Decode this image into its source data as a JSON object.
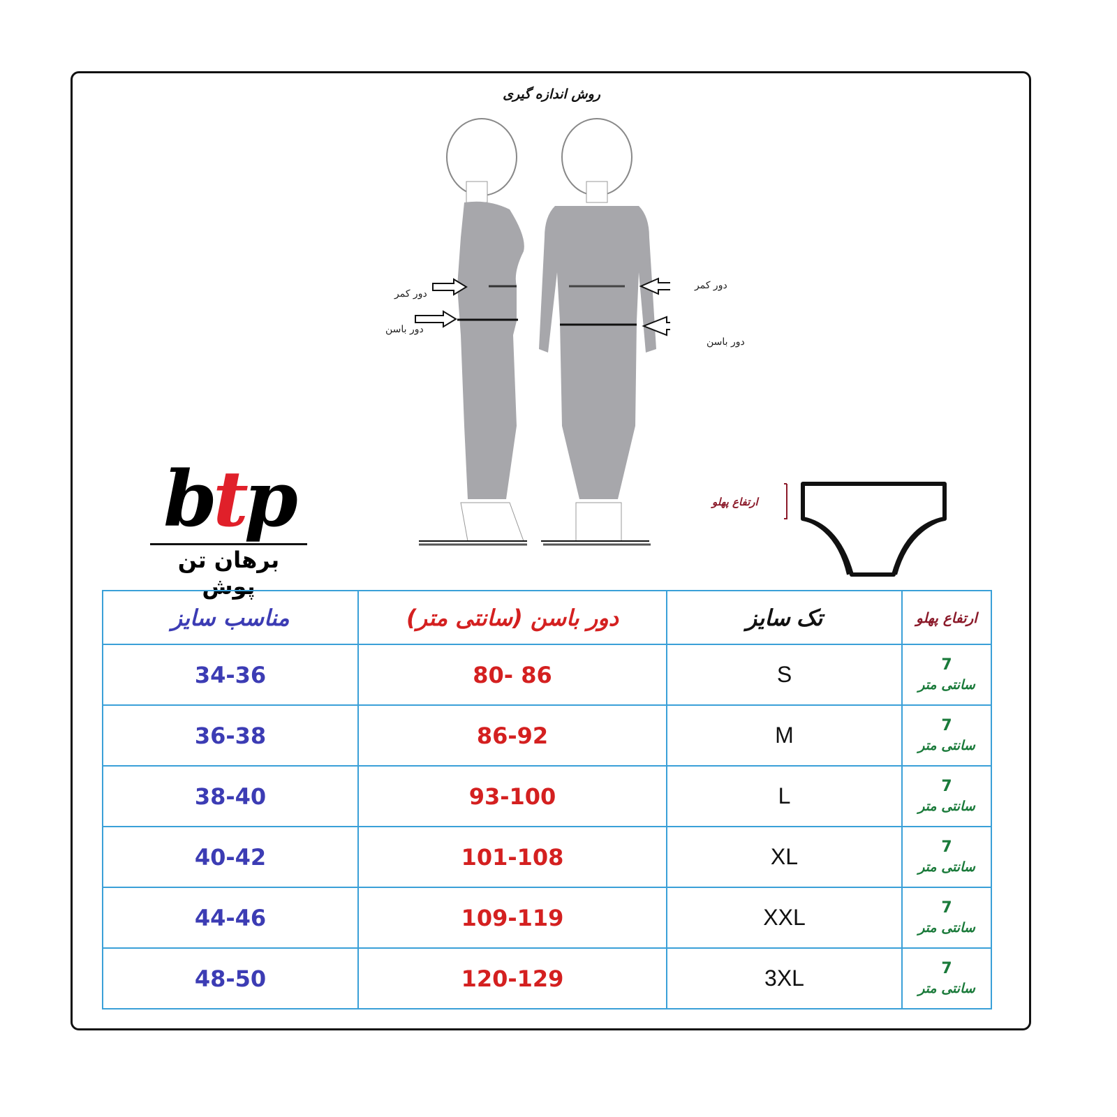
{
  "title": "روش اندازه گیری",
  "figure_labels": {
    "waist": "دور کمر",
    "hip": "دور باسن"
  },
  "logo": {
    "mark": "btp",
    "name": "برهان تن پوش"
  },
  "panty_label": "ارتفاع پهلو",
  "colors": {
    "table_border": "#3aa0d8",
    "fit_size": "#3c3cb4",
    "hip": "#d42020",
    "side_height": "#1a7a3a",
    "logo_accent": "#e0202a"
  },
  "table": {
    "headers": [
      "مناسب سایز",
      "دور باسن (سانتی متر)",
      "تک سایز",
      "ارتفاع پهلو"
    ],
    "rows": [
      {
        "fit": "34-36",
        "hip": "80- 86",
        "size": "S",
        "side": "7",
        "unit": "سانتی متر"
      },
      {
        "fit": "36-38",
        "hip": "86-92",
        "size": "M",
        "side": "7",
        "unit": "سانتی متر"
      },
      {
        "fit": "38-40",
        "hip": "93-100",
        "size": "L",
        "side": "7",
        "unit": "سانتی متر"
      },
      {
        "fit": "40-42",
        "hip": "101-108",
        "size": "XL",
        "side": "7",
        "unit": "سانتی متر"
      },
      {
        "fit": "44-46",
        "hip": "109-119",
        "size": "XXL",
        "side": "7",
        "unit": "سانتی متر"
      },
      {
        "fit": "48-50",
        "hip": "120-129",
        "size": "3XL",
        "side": "7",
        "unit": "سانتی متر"
      }
    ]
  }
}
